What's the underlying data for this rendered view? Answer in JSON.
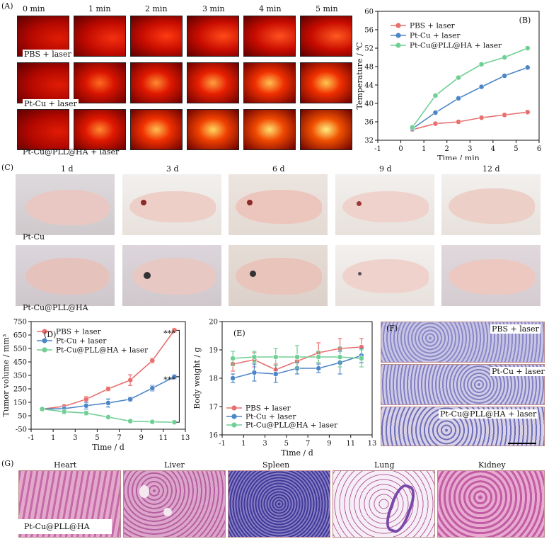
{
  "panel_labels": {
    "A": "(A)",
    "B": "(B)",
    "C": "(C)",
    "D": "(D)",
    "E": "(E)",
    "F": "(F)",
    "G": "(G)"
  },
  "panelA": {
    "time_labels": [
      "0 min",
      "1 min",
      "2 min",
      "3 min",
      "4 min",
      "5 min"
    ],
    "row_labels": [
      "PBS + laser",
      "Pt-Cu + laser",
      "Pt-Cu@PLL@HA + laser"
    ]
  },
  "panelC": {
    "day_labels": [
      "1 d",
      "3 d",
      "6 d",
      "9 d",
      "12 d"
    ],
    "row_labels": [
      "Pt-Cu",
      "Pt-Cu@PLL@HA"
    ]
  },
  "panelF": {
    "row_labels": [
      "PBS + laser",
      "Pt-Cu + laser",
      "Pt-Cu@PLL@HA + laser"
    ]
  },
  "panelG": {
    "organ_labels": [
      "Heart",
      "Liver",
      "Spleen",
      "Lung",
      "Kidney"
    ],
    "row_label": "Pt-Cu@PLL@HA"
  },
  "chart_data": [
    {
      "id": "B",
      "type": "line",
      "xlabel": "Time / min",
      "ylabel": "Temperature / ℃",
      "xlim": [
        -1,
        6
      ],
      "ylim": [
        32,
        60
      ],
      "xticks": [
        -1,
        0,
        1,
        2,
        3,
        4,
        5,
        6
      ],
      "yticks": [
        32,
        36,
        40,
        44,
        48,
        52,
        56,
        60
      ],
      "x": [
        0.5,
        1.5,
        2.5,
        3.5,
        4.5,
        5.5
      ],
      "series": [
        {
          "name": "PBS + laser",
          "color": "#e8706f",
          "values": [
            34.3,
            35.6,
            36.0,
            36.9,
            37.5,
            38.1
          ]
        },
        {
          "name": "Pt-Cu + laser",
          "color": "#4d86c6",
          "values": [
            34.5,
            38.0,
            41.1,
            43.6,
            46.0,
            47.8
          ]
        },
        {
          "name": "Pt-Cu@PLL@HA + laser",
          "color": "#6fcf94",
          "values": [
            34.8,
            41.7,
            45.6,
            48.5,
            50.0,
            52.0
          ]
        }
      ],
      "legend": "top-left"
    },
    {
      "id": "D",
      "type": "line",
      "xlabel": "Time / d",
      "ylabel": "Tumor volume / mm³",
      "xlim": [
        -1,
        13
      ],
      "ylim": [
        -50,
        750
      ],
      "xticks": [
        -1,
        1,
        3,
        5,
        7,
        9,
        11,
        13
      ],
      "yticks": [
        -50,
        50,
        150,
        250,
        350,
        450,
        550,
        650,
        750
      ],
      "x": [
        0,
        2,
        4,
        6,
        8,
        10,
        12
      ],
      "series": [
        {
          "name": "PBS + laser",
          "color": "#e8706f",
          "values": [
            100,
            120,
            173,
            250,
            315,
            460,
            685
          ],
          "err": [
            5,
            8,
            20,
            15,
            40,
            18,
            15
          ]
        },
        {
          "name": "Pt-Cu + laser",
          "color": "#4d86c6",
          "values": [
            100,
            103,
            125,
            145,
            173,
            255,
            340
          ],
          "err": [
            5,
            15,
            25,
            30,
            15,
            20,
            15
          ]
        },
        {
          "name": "Pt-Cu@PLL@HA + laser",
          "color": "#6fcf94",
          "values": [
            100,
            80,
            70,
            40,
            10,
            5,
            2
          ],
          "err": [
            5,
            15,
            15,
            5,
            5,
            5,
            5
          ]
        }
      ],
      "annotations": [
        "***",
        "***"
      ],
      "legend": "top-left"
    },
    {
      "id": "E",
      "type": "line",
      "xlabel": "Time / d",
      "ylabel": "Body weight / g",
      "xlim": [
        -1,
        13
      ],
      "ylim": [
        16,
        20
      ],
      "xticks": [
        -1,
        1,
        3,
        5,
        7,
        9,
        11,
        13
      ],
      "yticks": [
        16,
        17,
        18,
        19,
        20
      ],
      "x": [
        0,
        2,
        4,
        6,
        8,
        10,
        12
      ],
      "series": [
        {
          "name": "PBS + laser",
          "color": "#e8706f",
          "values": [
            18.5,
            18.65,
            18.3,
            18.6,
            18.9,
            19.05,
            19.1
          ],
          "err": [
            0.25,
            0.25,
            0.2,
            0.2,
            0.35,
            0.35,
            0.3
          ]
        },
        {
          "name": "Pt-Cu + laser",
          "color": "#4d86c6",
          "values": [
            18.0,
            18.2,
            18.15,
            18.35,
            18.35,
            18.55,
            18.8
          ],
          "err": [
            0.15,
            0.3,
            0.3,
            0.2,
            0.15,
            0.4,
            0.25
          ]
        },
        {
          "name": "Pt-Cu@PLL@HA + laser",
          "color": "#6fcf94",
          "values": [
            18.7,
            18.75,
            18.75,
            18.75,
            18.75,
            18.75,
            18.7
          ],
          "err": [
            0.25,
            0.2,
            0.3,
            0.4,
            0.2,
            0.35,
            0.3
          ]
        }
      ],
      "legend": "bottom-left"
    }
  ]
}
